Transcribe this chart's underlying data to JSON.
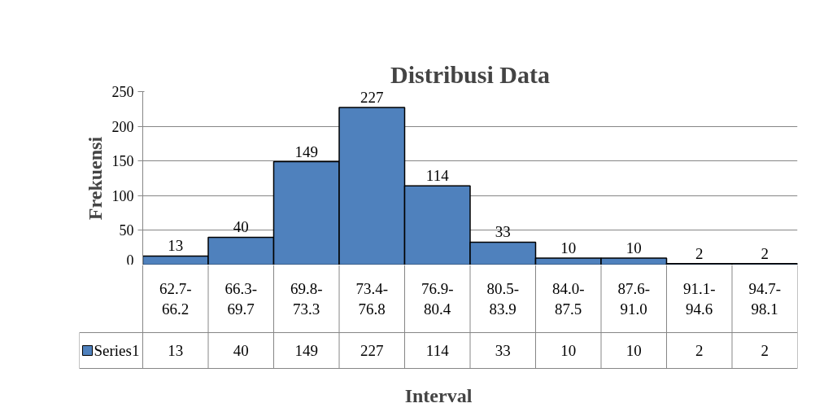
{
  "chart_data": {
    "type": "bar",
    "title": "Distribusi Data",
    "xlabel": "Interval",
    "ylabel": "Frekuensi",
    "categories": [
      "62.7-66.2",
      "66.3-69.7",
      "69.8-73.3",
      "73.4-76.8",
      "76.9-80.4",
      "80.5-83.9",
      "84.0-87.5",
      "87.6-91.0",
      "91.1-94.6",
      "94.7-98.1"
    ],
    "series": [
      {
        "name": "Series1",
        "color": "#4f81bd",
        "values": [
          13,
          40,
          149,
          227,
          114,
          33,
          10,
          10,
          2,
          2
        ],
        "value_labels": [
          "13",
          "40",
          "149",
          "227",
          "114",
          "33",
          "10",
          "10",
          "2",
          "2"
        ]
      }
    ],
    "totals": [
      "13",
      "40",
      "149",
      "227",
      "114",
      "33",
      "10",
      "10",
      "2",
      "2"
    ],
    "ylim": [
      0,
      250
    ],
    "yticks": [
      0,
      50,
      100,
      150,
      200,
      250
    ],
    "grid": "y",
    "data_labels": true
  }
}
